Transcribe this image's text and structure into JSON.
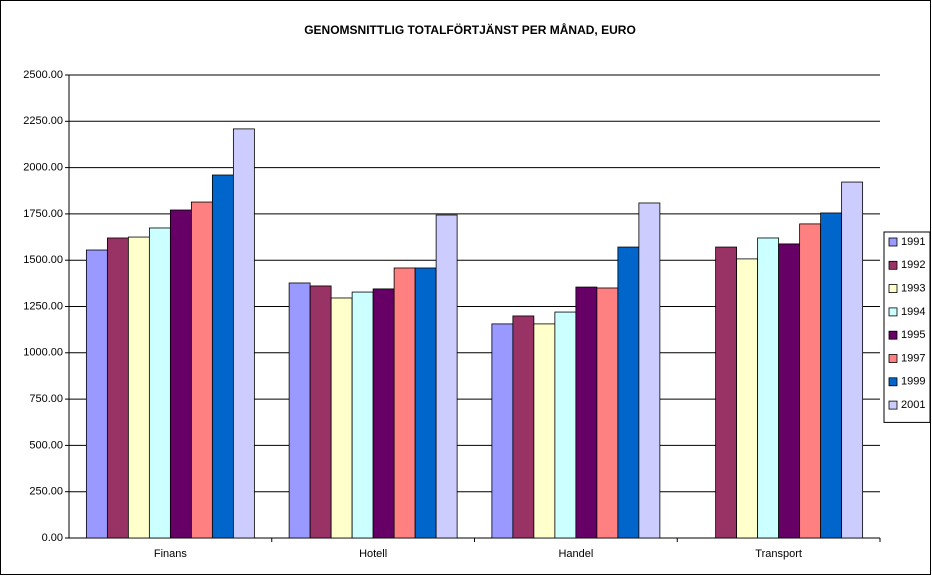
{
  "chart_data": {
    "type": "bar",
    "title": "GENOMSNITTLIG TOTALFÖRTJÄNST PER MÅNAD, EURO",
    "categories": [
      "Finans",
      "Hotell",
      "Handel",
      "Transport"
    ],
    "series": [
      {
        "name": "1991",
        "color": "#9999ff",
        "values": [
          1555,
          1377,
          1156,
          null
        ]
      },
      {
        "name": "1992",
        "color": "#993366",
        "values": [
          1620,
          1361,
          1199,
          1571
        ]
      },
      {
        "name": "1993",
        "color": "#ffffcc",
        "values": [
          1625,
          1296,
          1156,
          1507
        ]
      },
      {
        "name": "1994",
        "color": "#ccffff",
        "values": [
          1674,
          1328,
          1220,
          1620
        ]
      },
      {
        "name": "1995",
        "color": "#660066",
        "values": [
          1771,
          1345,
          1355,
          1588
        ]
      },
      {
        "name": "1997",
        "color": "#ff8080",
        "values": [
          1814,
          1458,
          1350,
          1696
        ]
      },
      {
        "name": "1999",
        "color": "#0066cc",
        "values": [
          1960,
          1458,
          1571,
          1755
        ]
      },
      {
        "name": "2001",
        "color": "#ccccff",
        "values": [
          2209,
          1744,
          1809,
          1922
        ]
      }
    ],
    "ylim": [
      0,
      2500
    ],
    "yticks": [
      {
        "value": 0,
        "label": "0.00"
      },
      {
        "value": 250,
        "label": "250.00"
      },
      {
        "value": 500,
        "label": "500.00"
      },
      {
        "value": 750,
        "label": "750.00"
      },
      {
        "value": 1000,
        "label": "1000.00"
      },
      {
        "value": 1250,
        "label": "1250.00"
      },
      {
        "value": 1500,
        "label": "1500.00"
      },
      {
        "value": 1750,
        "label": "1750.00"
      },
      {
        "value": 2000,
        "label": "2000.00"
      },
      {
        "value": 2250,
        "label": "2250.00"
      },
      {
        "value": 2500,
        "label": "2500.00"
      }
    ],
    "grid": true,
    "legend": "right"
  }
}
